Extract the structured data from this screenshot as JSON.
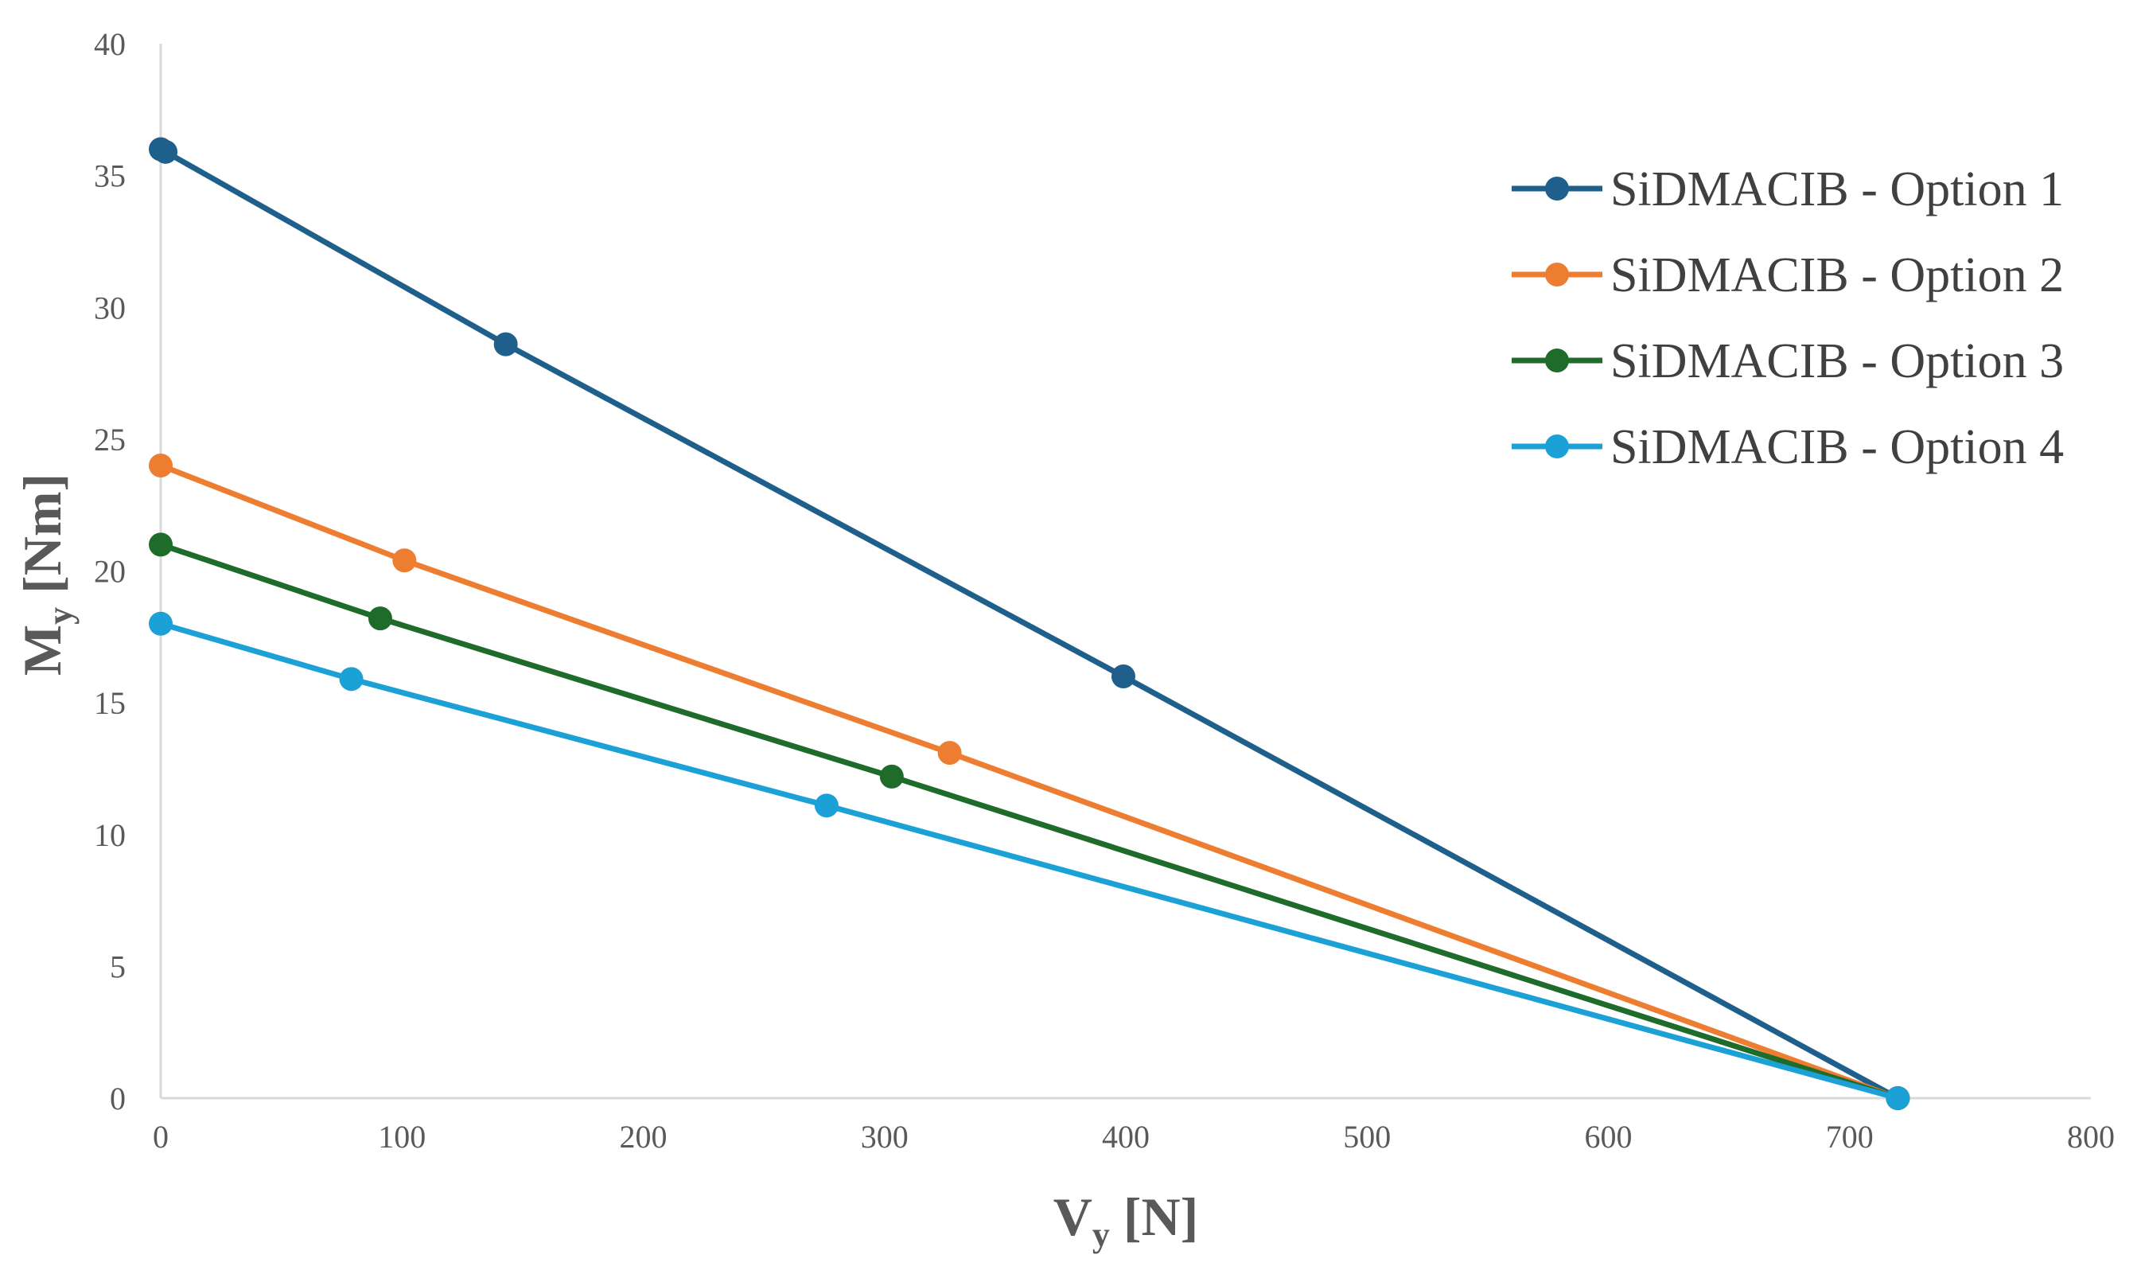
{
  "chart_data": {
    "type": "line",
    "title": "",
    "xlabel": {
      "main": "V",
      "sub": "y",
      "unit": " [N]"
    },
    "ylabel": {
      "main": "M",
      "sub": "y",
      "unit": " [Nm]"
    },
    "xlim": [
      0,
      800
    ],
    "ylim": [
      0,
      40
    ],
    "xticks": [
      0,
      100,
      200,
      300,
      400,
      500,
      600,
      700,
      800
    ],
    "yticks": [
      0,
      5,
      10,
      15,
      20,
      25,
      30,
      35,
      40
    ],
    "grid": false,
    "legend_position": "top-right",
    "series": [
      {
        "name": "SiDMACIB - Option 1",
        "color": "#1f5f8b",
        "points": [
          [
            0,
            36.0
          ],
          [
            2,
            35.9
          ],
          [
            143,
            28.6
          ],
          [
            399,
            16.0
          ],
          [
            720,
            0
          ]
        ]
      },
      {
        "name": "SiDMACIB - Option 2",
        "color": "#ed7d31",
        "points": [
          [
            0,
            24.0
          ],
          [
            101,
            20.4
          ],
          [
            327,
            13.1
          ],
          [
            720,
            0
          ]
        ]
      },
      {
        "name": "SiDMACIB - Option 3",
        "color": "#1e6b2a",
        "points": [
          [
            0,
            21.0
          ],
          [
            91,
            18.2
          ],
          [
            303,
            12.2
          ],
          [
            720,
            0
          ]
        ]
      },
      {
        "name": "SiDMACIB - Option 4",
        "color": "#1ba1d6",
        "points": [
          [
            0,
            18.0
          ],
          [
            79,
            15.9
          ],
          [
            276,
            11.1
          ],
          [
            720,
            0
          ]
        ]
      }
    ]
  }
}
